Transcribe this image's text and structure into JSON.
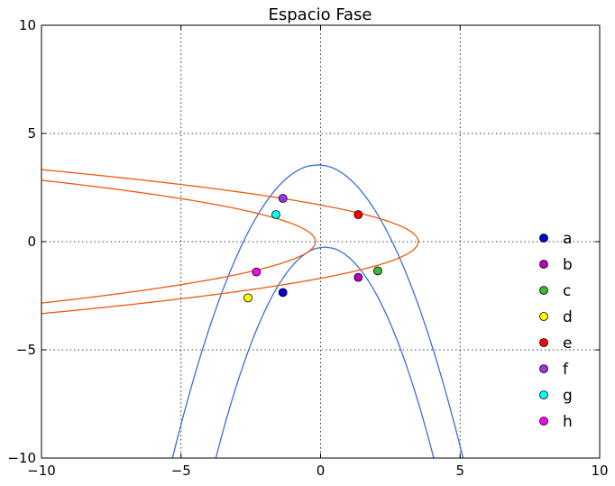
{
  "chart_data": {
    "type": "line",
    "title": "Espacio Fase",
    "xlim": [
      -10,
      10
    ],
    "ylim": [
      -10,
      10
    ],
    "xticks": [
      -10,
      -5,
      0,
      5,
      10
    ],
    "yticks": [
      -10,
      -5,
      0,
      5,
      10
    ],
    "xtick_labels": [
      "−10",
      "−5",
      "0",
      "5",
      "10"
    ],
    "ytick_labels": [
      "−10",
      "−5",
      "0",
      "5",
      "10"
    ],
    "xlabel": "",
    "ylabel": "",
    "grid": true,
    "legend_position": "right",
    "curves": [
      {
        "family": "blue-parabola-upper",
        "equation": "x = -0.1 + sqrt((3.55 - y) / 0.5)",
        "color": "#3a6fd8"
      },
      {
        "family": "blue-parabola-lower",
        "equation": "x = 0.15 + sqrt((-0.25 - y) / 0.64)",
        "color": "#3a6fd8"
      },
      {
        "family": "orange-parabola-inner",
        "equation": "y^2 = 0.82 * (-0.18 - x)",
        "color": "#ee5a10"
      },
      {
        "family": "orange-parabola-outer",
        "equation": "y^2 = 0.82 * (3.5 - x)",
        "color": "#ee5a10"
      }
    ],
    "series": [
      {
        "name": "a",
        "x": -1.35,
        "y": -2.35,
        "color": "#0000cc"
      },
      {
        "name": "b",
        "x": 1.35,
        "y": -1.65,
        "color": "#bb00bb"
      },
      {
        "name": "c",
        "x": 2.05,
        "y": -1.35,
        "color": "#33bb33"
      },
      {
        "name": "d",
        "x": -2.6,
        "y": -2.6,
        "color": "#ffff00"
      },
      {
        "name": "e",
        "x": 1.35,
        "y": 1.25,
        "color": "#ff0000"
      },
      {
        "name": "f",
        "x": -1.35,
        "y": 2.0,
        "color": "#9933ee"
      },
      {
        "name": "g",
        "x": -1.6,
        "y": 1.25,
        "color": "#00ffff"
      },
      {
        "name": "h",
        "x": -2.3,
        "y": -1.4,
        "color": "#ff00ff"
      }
    ]
  }
}
